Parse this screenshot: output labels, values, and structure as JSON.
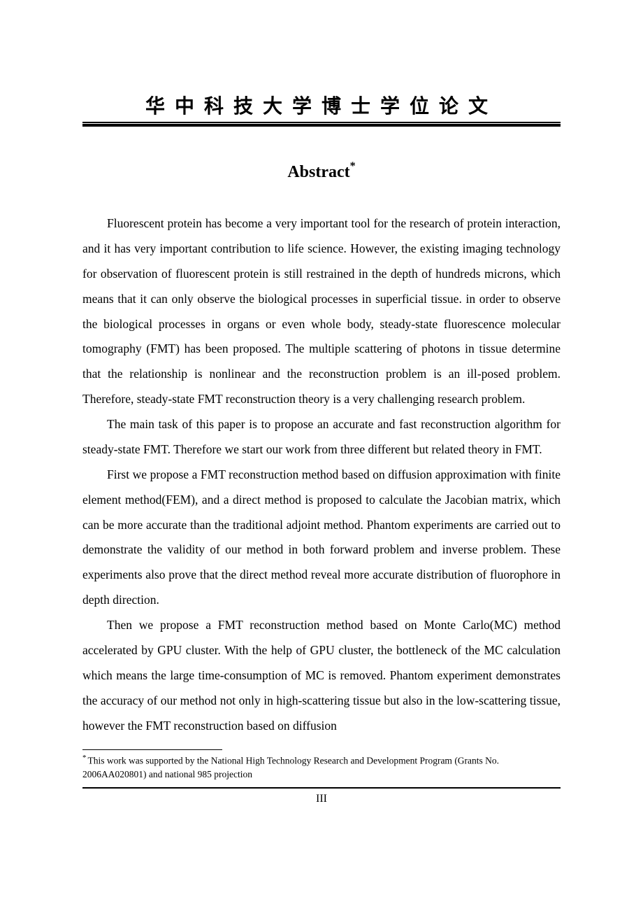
{
  "header": {
    "title": "华中科技大学博士学位论文"
  },
  "abstract": {
    "heading": "Abstract",
    "heading_marker": "*"
  },
  "paragraphs": {
    "p1": "Fluorescent protein has become a very important tool for the research of protein interaction, and it has very important contribution to life science. However, the existing imaging technology for observation of fluorescent protein is still restrained in the depth of hundreds microns, which means that it can only observe the biological processes in superficial tissue. in order to observe the biological processes in organs or even whole body, steady-state fluorescence molecular tomography (FMT) has been proposed. The multiple scattering of photons in tissue determine that the relationship is nonlinear and the reconstruction problem is an ill-posed problem. Therefore, steady-state FMT reconstruction theory is a very challenging research problem.",
    "p2": "The main task of this paper is to propose an accurate and fast reconstruction algorithm for steady-state FMT. Therefore we start our work from three different but related theory in FMT.",
    "p3": "First we propose a FMT reconstruction method based on diffusion approximation with finite element method(FEM), and a direct method is proposed to calculate the Jacobian matrix, which can be more accurate than the traditional adjoint method. Phantom experiments are carried out to demonstrate the validity of our method in both forward problem and inverse problem. These experiments also prove that the direct method reveal more accurate distribution of fluorophore in depth direction.",
    "p4": "Then we propose a FMT reconstruction method based on Monte Carlo(MC) method accelerated by GPU cluster. With the help of GPU cluster, the bottleneck of the MC calculation which means the large time-consumption of MC is removed. Phantom experiment demonstrates the accuracy of our method not only in high-scattering tissue but also in the low-scattering tissue, however the FMT reconstruction based on diffusion"
  },
  "footnote": {
    "marker": "*",
    "text": "This work was supported by the National High Technology Research and Development Program (Grants No. 2006AA020801) and national 985 projection"
  },
  "page_number": "III",
  "colors": {
    "text": "#000000",
    "background": "#ffffff",
    "border": "#000000"
  },
  "typography": {
    "header_font": "KaiTi",
    "body_font": "Times New Roman",
    "header_fontsize": 28,
    "heading_fontsize": 24,
    "body_fontsize": 17.5,
    "footnote_fontsize": 13.5,
    "page_number_fontsize": 16,
    "body_line_height": 2.05
  }
}
